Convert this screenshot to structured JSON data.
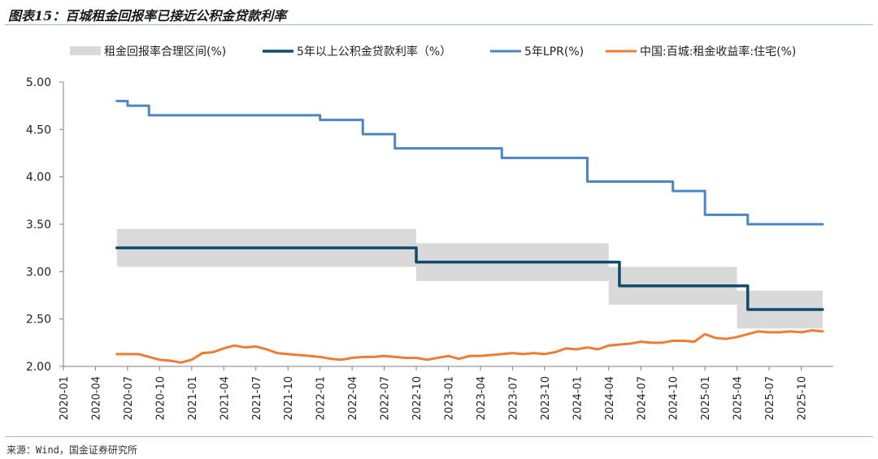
{
  "figure": {
    "title": "图表15：百城租金回报率已接近公积金贷款利率",
    "source": "来源：Wind，国金证券研究所"
  },
  "chart_data": {
    "type": "line",
    "title": "图表15：百城租金回报率已接近公积金贷款利率",
    "xlabel": "",
    "ylabel": "",
    "ylim": [
      2.0,
      5.0
    ],
    "yticks": [
      "5.00",
      "4.50",
      "4.00",
      "3.50",
      "3.00",
      "2.50",
      "2.00"
    ],
    "xlim": [
      "2020-01",
      "2026-01"
    ],
    "xticks": [
      "2020-01",
      "2020-04",
      "2020-07",
      "2020-10",
      "2021-01",
      "2021-04",
      "2021-07",
      "2021-10",
      "2022-01",
      "2022-04",
      "2022-07",
      "2022-10",
      "2023-01",
      "2023-04",
      "2023-07",
      "2023-10",
      "2024-01",
      "2024-04",
      "2024-07",
      "2024-10",
      "2025-01",
      "2025-04",
      "2025-07",
      "2025-10"
    ],
    "grid": false,
    "legend_position": "top",
    "band": {
      "name": "租金回报率合理区间(%)",
      "color": "#d9d9d9",
      "x": [
        "2020-06",
        "2022-09",
        "2022-10",
        "2024-03",
        "2024-04",
        "2025-03",
        "2025-04",
        "2025-12"
      ],
      "lower": [
        3.05,
        3.05,
        2.9,
        2.9,
        2.65,
        2.65,
        2.4,
        2.4
      ],
      "upper": [
        3.45,
        3.45,
        3.3,
        3.3,
        3.05,
        3.05,
        2.8,
        2.8
      ]
    },
    "series": [
      {
        "name": "5年以上公积金贷款利率（%）",
        "color": "#0e4a6e",
        "step": true,
        "x": [
          "2020-06",
          "2022-10",
          "2024-05",
          "2025-05",
          "2025-12"
        ],
        "values": [
          3.25,
          3.1,
          2.85,
          2.6,
          2.6
        ]
      },
      {
        "name": "5年LPR(%)",
        "color": "#4a86c5",
        "step": true,
        "x": [
          "2020-06",
          "2020-07",
          "2020-09",
          "2022-01",
          "2022-05",
          "2022-08",
          "2022-12",
          "2023-06",
          "2023-12",
          "2024-02",
          "2024-07",
          "2024-10",
          "2025-01",
          "2025-05",
          "2025-12"
        ],
        "values": [
          4.8,
          4.75,
          4.65,
          4.6,
          4.45,
          4.3,
          4.3,
          4.2,
          4.2,
          3.95,
          3.95,
          3.85,
          3.6,
          3.5,
          3.5
        ]
      },
      {
        "name": "中国:百城:租金收益率:住宅(%)",
        "color": "#ed7d31",
        "step": false,
        "x": [
          "2020-06",
          "2020-07",
          "2020-08",
          "2020-09",
          "2020-10",
          "2020-11",
          "2020-12",
          "2021-01",
          "2021-02",
          "2021-03",
          "2021-04",
          "2021-05",
          "2021-06",
          "2021-07",
          "2021-08",
          "2021-09",
          "2021-10",
          "2021-11",
          "2021-12",
          "2022-01",
          "2022-02",
          "2022-03",
          "2022-04",
          "2022-05",
          "2022-06",
          "2022-07",
          "2022-08",
          "2022-09",
          "2022-10",
          "2022-11",
          "2022-12",
          "2023-01",
          "2023-02",
          "2023-03",
          "2023-04",
          "2023-05",
          "2023-06",
          "2023-07",
          "2023-08",
          "2023-09",
          "2023-10",
          "2023-11",
          "2023-12",
          "2024-01",
          "2024-02",
          "2024-03",
          "2024-04",
          "2024-05",
          "2024-06",
          "2024-07",
          "2024-08",
          "2024-09",
          "2024-10",
          "2024-11",
          "2024-12",
          "2025-01",
          "2025-02",
          "2025-03",
          "2025-04",
          "2025-05",
          "2025-06",
          "2025-07",
          "2025-08",
          "2025-09",
          "2025-10",
          "2025-11",
          "2025-12"
        ],
        "values": [
          2.13,
          2.13,
          2.13,
          2.1,
          2.07,
          2.06,
          2.04,
          2.07,
          2.14,
          2.15,
          2.19,
          2.22,
          2.2,
          2.21,
          2.18,
          2.14,
          2.13,
          2.12,
          2.11,
          2.1,
          2.08,
          2.07,
          2.09,
          2.1,
          2.1,
          2.11,
          2.1,
          2.09,
          2.09,
          2.07,
          2.09,
          2.11,
          2.08,
          2.11,
          2.11,
          2.12,
          2.13,
          2.14,
          2.13,
          2.14,
          2.13,
          2.15,
          2.19,
          2.18,
          2.2,
          2.18,
          2.22,
          2.23,
          2.24,
          2.26,
          2.25,
          2.25,
          2.27,
          2.27,
          2.26,
          2.34,
          2.3,
          2.29,
          2.31,
          2.34,
          2.37,
          2.36,
          2.36,
          2.37,
          2.36,
          2.38,
          2.37
        ]
      }
    ]
  }
}
